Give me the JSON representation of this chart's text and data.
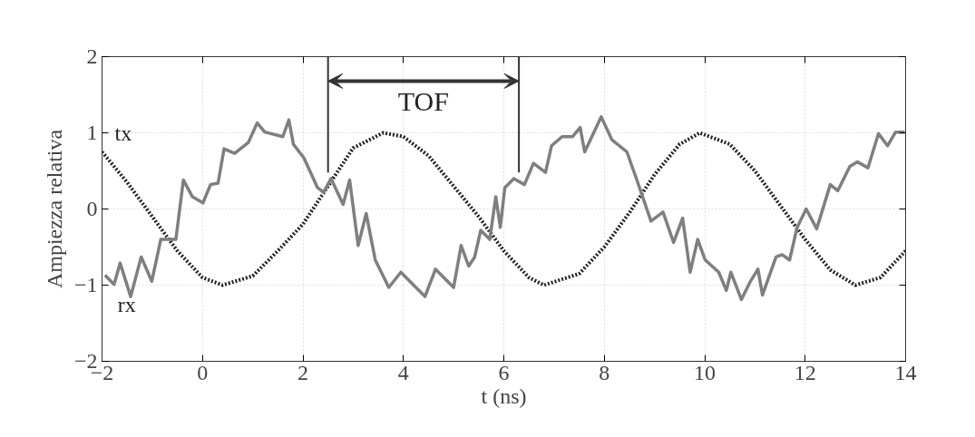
{
  "chart_data": {
    "type": "line",
    "xlabel": "t (ns)",
    "ylabel": "Ampiezza relativa",
    "xlim": [
      -2,
      14
    ],
    "ylim": [
      -2,
      2
    ],
    "xticks": [
      -2,
      0,
      2,
      4,
      6,
      8,
      10,
      12,
      14
    ],
    "yticks": [
      -2,
      -1,
      0,
      1,
      2
    ],
    "grid": true,
    "series": [
      {
        "name": "tx",
        "color": "#222222",
        "line_style": "dotted",
        "x": [
          -2,
          -1.5,
          -1,
          -0.5,
          0,
          0.4,
          1,
          1.5,
          2,
          2.5,
          3,
          3.6,
          4,
          4.5,
          5,
          5.5,
          6,
          6.5,
          6.8,
          7.5,
          8,
          8.5,
          9,
          9.5,
          9.9,
          10.5,
          11,
          11.5,
          12,
          12.5,
          13,
          13.5,
          14
        ],
        "values": [
          0.75,
          0.35,
          -0.1,
          -0.55,
          -0.9,
          -1,
          -0.88,
          -0.55,
          -0.2,
          0.3,
          0.8,
          1,
          0.95,
          0.7,
          0.3,
          -0.1,
          -0.55,
          -0.9,
          -1,
          -0.85,
          -0.5,
          -0.05,
          0.45,
          0.85,
          1,
          0.85,
          0.5,
          0.05,
          -0.4,
          -0.8,
          -1,
          -0.9,
          -0.55
        ]
      },
      {
        "name": "rx",
        "color": "#7f7f7f",
        "line_style": "solid",
        "x": [
          -1.94,
          -1.76,
          -1.64,
          -1.43,
          -1.22,
          -1.01,
          -0.83,
          -0.53,
          -0.38,
          -0.2,
          0.01,
          0.16,
          0.31,
          0.43,
          0.64,
          0.91,
          1.09,
          1.24,
          1.6,
          1.72,
          1.81,
          2.02,
          2.29,
          2.41,
          2.56,
          2.8,
          2.93,
          3.1,
          3.26,
          3.44,
          3.71,
          3.95,
          4.19,
          4.43,
          4.64,
          4.82,
          5.0,
          5.15,
          5.3,
          5.42,
          5.54,
          5.72,
          5.84,
          5.93,
          6.02,
          6.2,
          6.41,
          6.59,
          6.83,
          6.95,
          7.16,
          7.37,
          7.52,
          7.61,
          7.94,
          8.15,
          8.45,
          8.66,
          8.93,
          9.17,
          9.38,
          9.56,
          9.71,
          9.86,
          10.01,
          10.28,
          10.43,
          10.52,
          10.73,
          10.91,
          11.06,
          11.15,
          11.42,
          11.54,
          11.69,
          11.84,
          12.02,
          12.23,
          12.5,
          12.65,
          12.89,
          13.04,
          13.25,
          13.46,
          13.64,
          13.8,
          13.98
        ],
        "values": [
          -0.87,
          -0.99,
          -0.71,
          -1.15,
          -0.63,
          -0.95,
          -0.4,
          -0.4,
          0.38,
          0.16,
          0.08,
          0.32,
          0.34,
          0.79,
          0.73,
          0.87,
          1.13,
          1.01,
          0.95,
          1.17,
          0.85,
          0.67,
          0.28,
          0.22,
          0.4,
          0.06,
          0.38,
          -0.48,
          -0.06,
          -0.67,
          -1.03,
          -0.83,
          -0.99,
          -1.15,
          -0.79,
          -0.91,
          -1.03,
          -0.48,
          -0.75,
          -0.63,
          -0.28,
          -0.4,
          0.16,
          -0.24,
          0.28,
          0.4,
          0.32,
          0.6,
          0.48,
          0.83,
          0.95,
          0.95,
          1.07,
          0.75,
          1.21,
          0.91,
          0.75,
          0.36,
          -0.16,
          -0.04,
          -0.44,
          -0.12,
          -0.83,
          -0.4,
          -0.67,
          -0.83,
          -1.07,
          -0.83,
          -1.19,
          -0.95,
          -0.79,
          -1.13,
          -0.63,
          -0.6,
          -0.67,
          -0.24,
          0,
          -0.26,
          0.32,
          0.24,
          0.56,
          0.62,
          0.54,
          0.99,
          0.83,
          1.01,
          1.01
        ]
      }
    ],
    "ref_lines": [
      {
        "axis": "x",
        "value": 2.5,
        "color": "#333333"
      },
      {
        "axis": "x",
        "value": 6.3,
        "color": "#333333"
      }
    ],
    "annotations": [
      "TOF"
    ]
  }
}
